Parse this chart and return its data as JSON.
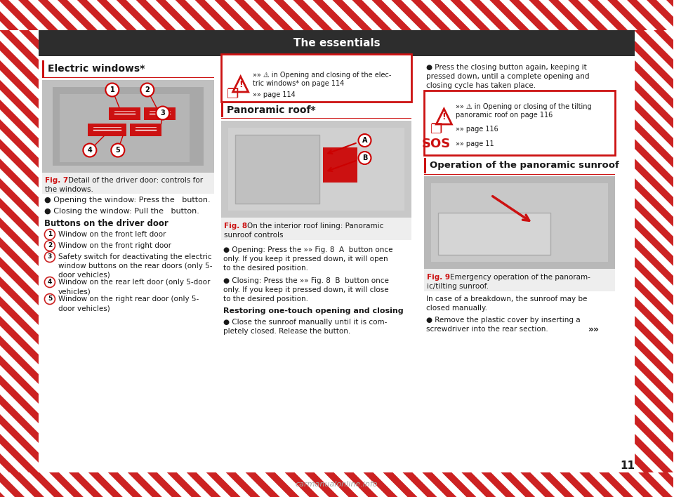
{
  "bg_color": "#ffffff",
  "stripe_color": "#cc2222",
  "header_bg": "#2d2d2d",
  "header_text": "The essentials",
  "header_text_color": "#ffffff",
  "red_color": "#cc1111",
  "dark_text": "#1a1a1a",
  "page_number": "11",
  "col1_title": "Electric windows*",
  "fig7_caption_bold": "Fig. 7",
  "col2_pano_title": "Panoramic roof*",
  "fig8_caption_bold": "Fig. 8",
  "col3_op_title": "Operation of the panoramic sunroof",
  "fig9_caption_bold": "Fig. 9",
  "buttons_title": "Buttons on the driver door",
  "breakdown_text1": "In case of a breakdown, the sunroof may be",
  "breakdown_text2": "closed manually."
}
